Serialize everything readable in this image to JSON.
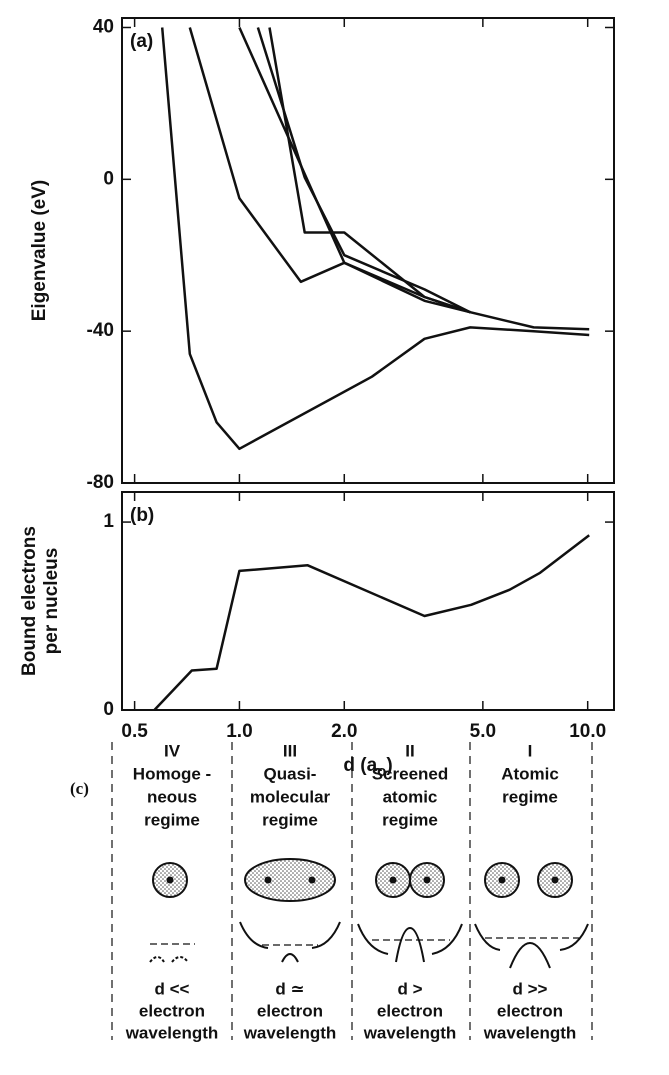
{
  "chart_data": [
    {
      "type": "line",
      "panel_label": "(a)",
      "ylabel": "Eigenvalue (eV)",
      "xscale": "log",
      "xlim": [
        0.46,
        11.9
      ],
      "ylim": [
        -80,
        42.5
      ],
      "yticks": [
        -80,
        -40,
        0,
        40
      ],
      "series": [
        {
          "color": "#111",
          "x": [
            0.6,
            0.72,
            0.86,
            1.0,
            2.4,
            3.4,
            4.6,
            7.0,
            10.1
          ],
          "values": [
            40,
            -46,
            -64,
            -71,
            -52,
            -42,
            -39,
            -40,
            -41
          ]
        },
        {
          "color": "#111",
          "x": [
            0.72,
            1.0,
            1.5,
            2.0,
            3.4,
            4.6,
            7.0,
            10.1
          ],
          "values": [
            40,
            -5,
            -27,
            -22,
            -32,
            -35,
            -39,
            -39.5
          ]
        },
        {
          "color": "#111",
          "x": [
            1.0,
            2.0,
            3.4,
            4.6
          ],
          "values": [
            40,
            -22,
            -31,
            -35
          ]
        },
        {
          "color": "#111",
          "x": [
            1.13,
            1.54,
            2.0,
            3.4,
            4.6
          ],
          "values": [
            40,
            0.5,
            -20,
            -29,
            -35
          ]
        },
        {
          "color": "#111",
          "x": [
            1.22,
            1.54,
            2.0,
            3.4,
            4.6
          ],
          "values": [
            40,
            -14,
            -14,
            -31,
            -35
          ]
        }
      ]
    },
    {
      "type": "line",
      "panel_label": "(b)",
      "ylabel": [
        "Bound electrons",
        "per nucleus"
      ],
      "xscale": "log",
      "xlabel": [
        "d (a",
        "o",
        ")"
      ],
      "xlim": [
        0.46,
        11.9
      ],
      "ylim": [
        0,
        1.16
      ],
      "yticks": [
        0,
        1
      ],
      "xticks": [
        0.5,
        {
          "value": 1,
          "label": "1.0"
        },
        {
          "value": 2,
          "label": "2.0"
        },
        {
          "value": 5,
          "label": "5.0"
        },
        {
          "value": 10,
          "label": "10.0"
        }
      ],
      "series": [
        {
          "color": "#111",
          "x": [
            0.57,
            0.73,
            0.86,
            1.0,
            1.57,
            3.4,
            4.63,
            5.97,
            7.3,
            10.1
          ],
          "values": [
            0,
            0.21,
            0.22,
            0.74,
            0.77,
            0.5,
            0.56,
            0.64,
            0.73,
            0.93
          ]
        }
      ]
    }
  ],
  "diagram": {
    "label": "(c)",
    "regimes": [
      {
        "numeral": "IV",
        "name": [
          "Homoge -",
          "neous",
          "regime"
        ],
        "condition": [
          "d <<",
          "electron",
          "wavelength"
        ]
      },
      {
        "numeral": "III",
        "name": [
          "Quasi-",
          "molecular",
          "regime"
        ],
        "condition": [
          "d ≃",
          "electron",
          "wavelength"
        ]
      },
      {
        "numeral": "II",
        "name": [
          "Screened",
          "atomic",
          "regime"
        ],
        "condition": [
          "d >",
          "electron",
          "wavelength"
        ]
      },
      {
        "numeral": "I",
        "name": [
          "Atomic",
          "regime"
        ],
        "condition": [
          "d >>",
          "electron",
          "wavelength"
        ]
      }
    ]
  }
}
